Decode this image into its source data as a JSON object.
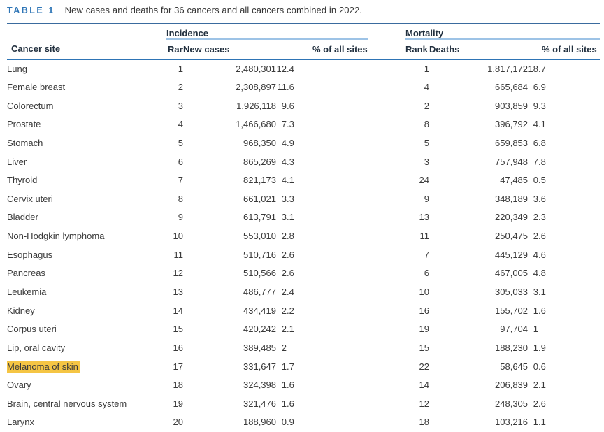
{
  "caption": {
    "label": "TABLE 1",
    "text": "New cases and deaths for 36 cancers and all cancers combined in 2022."
  },
  "colors": {
    "accent": "#2E75B6",
    "rule_thin": "#3A6B9E",
    "rule_thick": "#2E74B5",
    "group_underline": "#9DC3E6",
    "header_text": "#22303F",
    "body_text": "#3A3A3A",
    "highlight": "#F5C544"
  },
  "table": {
    "group_headers": {
      "incidence": "Incidence",
      "mortality": "Mortality"
    },
    "column_headers": {
      "site": "Cancer site",
      "rank": "Rank",
      "new_cases": "New cases",
      "pct": "% of all sites",
      "deaths": "Deaths"
    },
    "rows": [
      {
        "site": "Lung",
        "inc_rank": "1",
        "inc_cases": "2,480,301",
        "inc_pct": "12.4",
        "mort_rank": "1",
        "deaths": "1,817,172",
        "mort_pct": "18.7",
        "highlighted": false
      },
      {
        "site": "Female breast",
        "inc_rank": "2",
        "inc_cases": "2,308,897",
        "inc_pct": "11.6",
        "mort_rank": "4",
        "deaths": "665,684",
        "mort_pct": "6.9",
        "highlighted": false
      },
      {
        "site": "Colorectum",
        "inc_rank": "3",
        "inc_cases": "1,926,118",
        "inc_pct": "9.6",
        "mort_rank": "2",
        "deaths": "903,859",
        "mort_pct": "9.3",
        "highlighted": false
      },
      {
        "site": "Prostate",
        "inc_rank": "4",
        "inc_cases": "1,466,680",
        "inc_pct": "7.3",
        "mort_rank": "8",
        "deaths": "396,792",
        "mort_pct": "4.1",
        "highlighted": false
      },
      {
        "site": "Stomach",
        "inc_rank": "5",
        "inc_cases": "968,350",
        "inc_pct": "4.9",
        "mort_rank": "5",
        "deaths": "659,853",
        "mort_pct": "6.8",
        "highlighted": false
      },
      {
        "site": "Liver",
        "inc_rank": "6",
        "inc_cases": "865,269",
        "inc_pct": "4.3",
        "mort_rank": "3",
        "deaths": "757,948",
        "mort_pct": "7.8",
        "highlighted": false
      },
      {
        "site": "Thyroid",
        "inc_rank": "7",
        "inc_cases": "821,173",
        "inc_pct": "4.1",
        "mort_rank": "24",
        "deaths": "47,485",
        "mort_pct": "0.5",
        "highlighted": false
      },
      {
        "site": "Cervix uteri",
        "inc_rank": "8",
        "inc_cases": "661,021",
        "inc_pct": "3.3",
        "mort_rank": "9",
        "deaths": "348,189",
        "mort_pct": "3.6",
        "highlighted": false
      },
      {
        "site": "Bladder",
        "inc_rank": "9",
        "inc_cases": "613,791",
        "inc_pct": "3.1",
        "mort_rank": "13",
        "deaths": "220,349",
        "mort_pct": "2.3",
        "highlighted": false
      },
      {
        "site": "Non-Hodgkin lymphoma",
        "inc_rank": "10",
        "inc_cases": "553,010",
        "inc_pct": "2.8",
        "mort_rank": "11",
        "deaths": "250,475",
        "mort_pct": "2.6",
        "highlighted": false
      },
      {
        "site": "Esophagus",
        "inc_rank": "11",
        "inc_cases": "510,716",
        "inc_pct": "2.6",
        "mort_rank": "7",
        "deaths": "445,129",
        "mort_pct": "4.6",
        "highlighted": false
      },
      {
        "site": "Pancreas",
        "inc_rank": "12",
        "inc_cases": "510,566",
        "inc_pct": "2.6",
        "mort_rank": "6",
        "deaths": "467,005",
        "mort_pct": "4.8",
        "highlighted": false
      },
      {
        "site": "Leukemia",
        "inc_rank": "13",
        "inc_cases": "486,777",
        "inc_pct": "2.4",
        "mort_rank": "10",
        "deaths": "305,033",
        "mort_pct": "3.1",
        "highlighted": false
      },
      {
        "site": "Kidney",
        "inc_rank": "14",
        "inc_cases": "434,419",
        "inc_pct": "2.2",
        "mort_rank": "16",
        "deaths": "155,702",
        "mort_pct": "1.6",
        "highlighted": false
      },
      {
        "site": "Corpus uteri",
        "inc_rank": "15",
        "inc_cases": "420,242",
        "inc_pct": "2.1",
        "mort_rank": "19",
        "deaths": "97,704",
        "mort_pct": "1",
        "highlighted": false
      },
      {
        "site": "Lip, oral cavity",
        "inc_rank": "16",
        "inc_cases": "389,485",
        "inc_pct": "2",
        "mort_rank": "15",
        "deaths": "188,230",
        "mort_pct": "1.9",
        "highlighted": false
      },
      {
        "site": "Melanoma of skin",
        "inc_rank": "17",
        "inc_cases": "331,647",
        "inc_pct": "1.7",
        "mort_rank": "22",
        "deaths": "58,645",
        "mort_pct": "0.6",
        "highlighted": true
      },
      {
        "site": "Ovary",
        "inc_rank": "18",
        "inc_cases": "324,398",
        "inc_pct": "1.6",
        "mort_rank": "14",
        "deaths": "206,839",
        "mort_pct": "2.1",
        "highlighted": false
      },
      {
        "site": "Brain, central nervous system",
        "inc_rank": "19",
        "inc_cases": "321,476",
        "inc_pct": "1.6",
        "mort_rank": "12",
        "deaths": "248,305",
        "mort_pct": "2.6",
        "highlighted": false
      },
      {
        "site": "Larynx",
        "inc_rank": "20",
        "inc_cases": "188,960",
        "inc_pct": "0.9",
        "mort_rank": "18",
        "deaths": "103,216",
        "mort_pct": "1.1",
        "highlighted": false
      }
    ]
  }
}
